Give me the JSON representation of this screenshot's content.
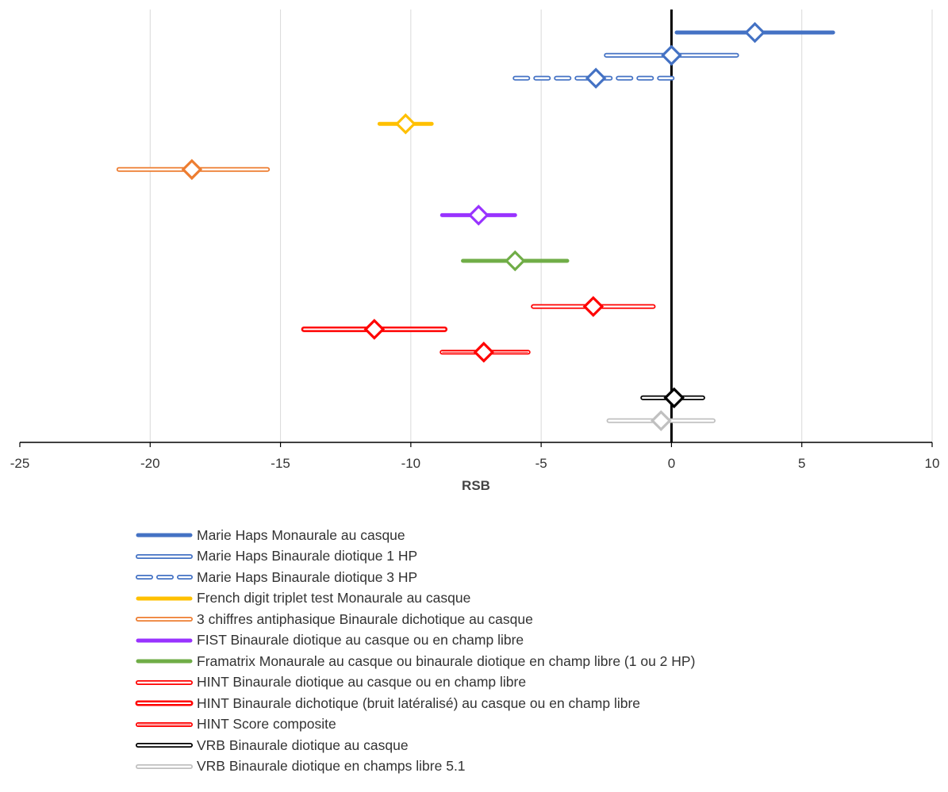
{
  "chart_data": {
    "type": "forest",
    "xlabel": "RSB",
    "xlim": [
      -25,
      10
    ],
    "xticks": [
      -25,
      -20,
      -15,
      -10,
      -5,
      0,
      5,
      10
    ],
    "grid": true,
    "reference_line_x": 0,
    "legend_position": "bottom",
    "series": [
      {
        "name": "Marie Haps Monaurale au casque",
        "point": 3.2,
        "low": 0.2,
        "high": 6.2,
        "color": "#4472C4",
        "style": "solid"
      },
      {
        "name": "Marie Haps Binaurale diotique 1 HP",
        "point": 0.0,
        "low": -2.5,
        "high": 2.5,
        "color": "#4472C4",
        "style": "double"
      },
      {
        "name": "Marie Haps Binaurale diotique 3 HP",
        "point": -2.9,
        "low": -6.0,
        "high": 0.1,
        "color": "#4472C4",
        "style": "double-dash"
      },
      {
        "name": "French digit triplet test Monaurale au casque",
        "point": -10.2,
        "low": -11.2,
        "high": -9.2,
        "color": "#FFC000",
        "style": "solid"
      },
      {
        "name": "3 chiffres antiphasique Binaurale dichotique au casque",
        "point": -18.4,
        "low": -21.2,
        "high": -15.5,
        "color": "#ED7D31",
        "style": "double"
      },
      {
        "name": "FIST Binaurale diotique au casque ou en champ libre",
        "point": -7.4,
        "low": -8.8,
        "high": -6.0,
        "color": "#9933FF",
        "style": "solid"
      },
      {
        "name": "Framatrix Monaurale au casque ou binaurale diotique en champ libre (1 ou 2 HP)",
        "point": -6.0,
        "low": -8.0,
        "high": -4.0,
        "color": "#70AD47",
        "style": "solid"
      },
      {
        "name": "HINT Binaurale diotique au casque ou en champ libre",
        "point": -3.0,
        "low": -5.3,
        "high": -0.7,
        "color": "#FF0000",
        "style": "double"
      },
      {
        "name": "HINT Binaurale dichotique (bruit latéralisé) au casque ou en champ libre",
        "point": -11.4,
        "low": -14.1,
        "high": -8.7,
        "color": "#FF0000",
        "style": "double-thick"
      },
      {
        "name": "HINT Score composite",
        "point": -7.2,
        "low": -8.8,
        "high": -5.5,
        "color": "#FF0000",
        "style": "triple"
      },
      {
        "name": "VRB Binaurale diotique au casque",
        "point": 0.1,
        "low": -1.1,
        "high": 1.2,
        "color": "#000000",
        "style": "double"
      },
      {
        "name": "VRB Binaurale diotique en champs libre 5.1",
        "point": -0.4,
        "low": -2.4,
        "high": 1.6,
        "color": "#C0C0C0",
        "style": "double"
      }
    ]
  },
  "colors": {
    "grid": "#D9D9D9",
    "axis": "#000000"
  }
}
